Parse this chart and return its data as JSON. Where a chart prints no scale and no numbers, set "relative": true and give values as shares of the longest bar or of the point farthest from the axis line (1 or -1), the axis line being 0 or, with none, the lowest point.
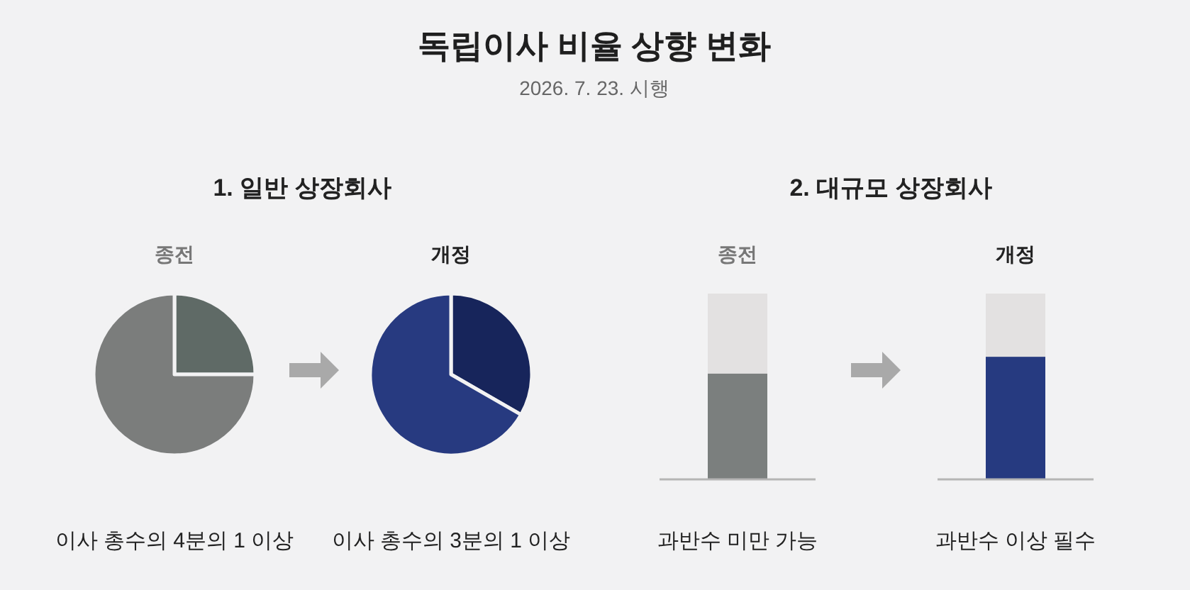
{
  "chart_data": [
    {
      "type": "other",
      "title": "독립이사 비율 상향 변화",
      "subtitle": "2026. 7. 23. 시행"
    },
    {
      "type": "pie",
      "title": "종전",
      "categories": [
        null,
        null
      ],
      "values": [
        25,
        75
      ],
      "colors": [
        "#5f6a66",
        "#7b7d7c"
      ],
      "annotations": [
        "이사 총수의 4분의 1 이상",
        "1. 일반 상장회사"
      ]
    },
    {
      "type": "pie",
      "title": "개정",
      "categories": [
        null,
        null
      ],
      "values": [
        33.3,
        66.7
      ],
      "colors": [
        "#17255b",
        "#273a80"
      ],
      "annotations": [
        "이사 총수의 3분의 1 이상"
      ]
    },
    {
      "type": "bar",
      "title": "종전",
      "stacked": true,
      "relative": true,
      "categories": [
        null
      ],
      "series": [
        {
          "color": "#7b7f7e",
          "values": [
            0.57
          ]
        },
        {
          "color": "#e3e1e1",
          "values": [
            0.43
          ]
        }
      ],
      "annotations": [
        "과반수 미만 가능",
        "2. 대규모 상장회사"
      ]
    },
    {
      "type": "bar",
      "title": "개정",
      "stacked": true,
      "relative": true,
      "categories": [
        null
      ],
      "series": [
        {
          "color": "#263a80",
          "values": [
            0.66
          ]
        },
        {
          "color": "#e3e1e1",
          "values": [
            0.34
          ]
        }
      ],
      "annotations": [
        "과반수 이상 필수"
      ]
    }
  ]
}
